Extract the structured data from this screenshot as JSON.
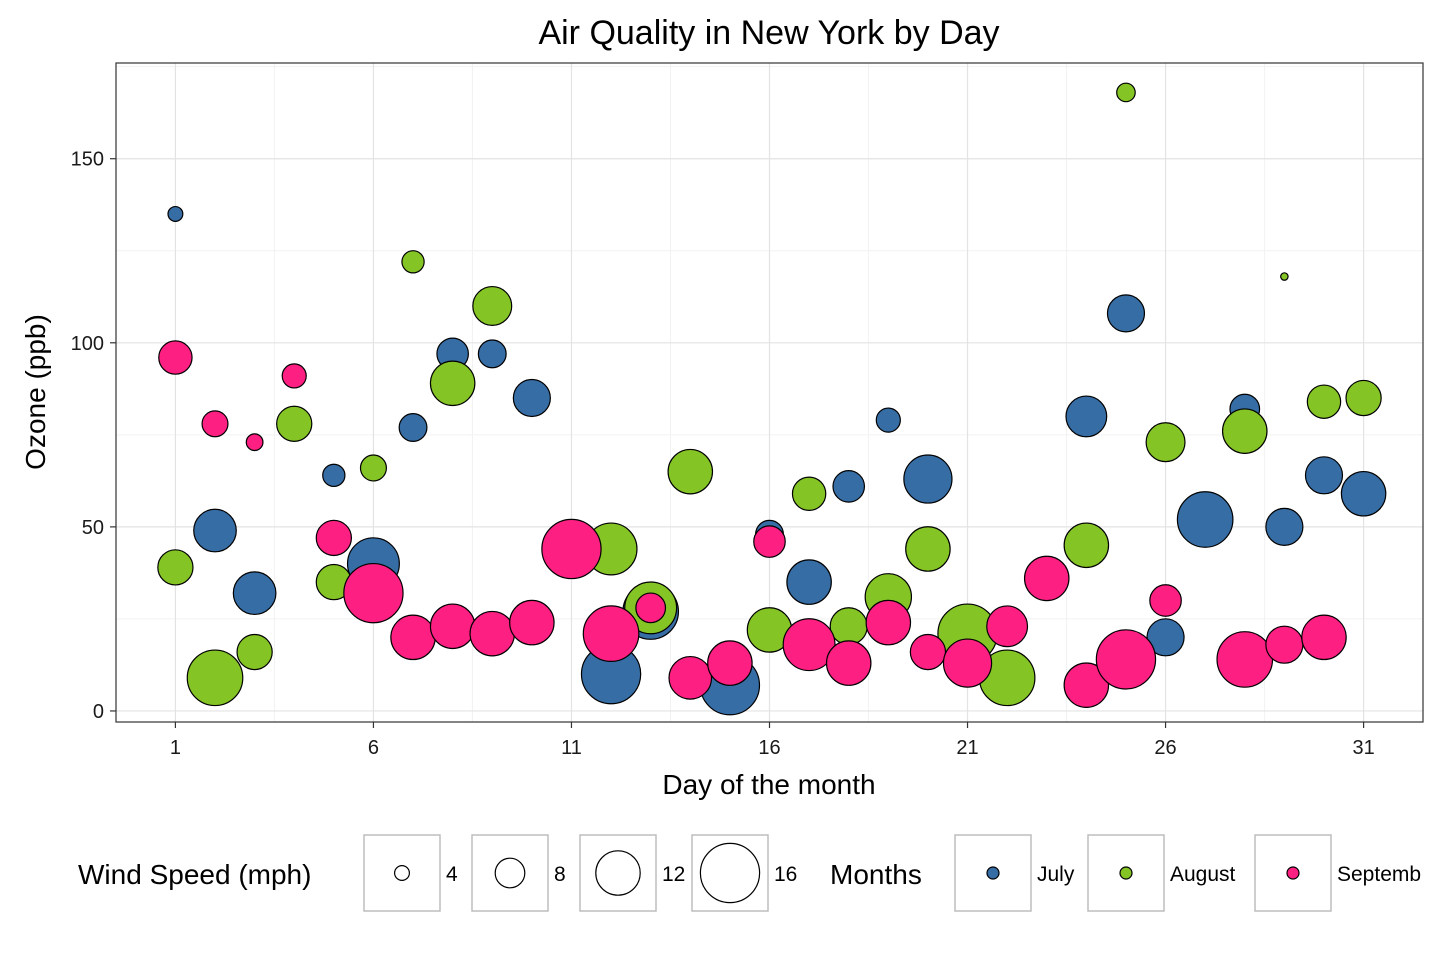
{
  "chart_data": {
    "type": "scatter",
    "title": "Air Quality in New York by Day",
    "xlabel": "Day of the month",
    "ylabel": "Ozone (ppb)",
    "xlim": [
      -0.5,
      32.5
    ],
    "ylim": [
      -3,
      176
    ],
    "x_ticks": [
      1,
      6,
      11,
      16,
      21,
      26,
      31
    ],
    "y_ticks": [
      0,
      50,
      100,
      150
    ],
    "grid": true,
    "size_legend": {
      "title": "Wind Speed (mph)",
      "entries": [
        {
          "label": "4",
          "value": 4
        },
        {
          "label": "8",
          "value": 8
        },
        {
          "label": "12",
          "value": 12
        },
        {
          "label": "16",
          "value": 16
        }
      ]
    },
    "color_legend": {
      "title": "Months",
      "entries": [
        {
          "label": "July",
          "color": "#376da5"
        },
        {
          "label": "August",
          "color": "#85c425"
        },
        {
          "label": "Septemb",
          "color": "#fd1f82"
        }
      ]
    },
    "series": [
      {
        "name": "July",
        "color": "#376da5",
        "points": [
          {
            "x": 1,
            "y": 135,
            "wind": 4
          },
          {
            "x": 2,
            "y": 49,
            "wind": 11.5
          },
          {
            "x": 3,
            "y": 32,
            "wind": 11.5
          },
          {
            "x": 5,
            "y": 64,
            "wind": 6
          },
          {
            "x": 6,
            "y": 40,
            "wind": 14
          },
          {
            "x": 7,
            "y": 77,
            "wind": 7.5
          },
          {
            "x": 8,
            "y": 97,
            "wind": 8.5
          },
          {
            "x": 9,
            "y": 97,
            "wind": 7.5
          },
          {
            "x": 10,
            "y": 85,
            "wind": 10
          },
          {
            "x": 12,
            "y": 10,
            "wind": 16
          },
          {
            "x": 13,
            "y": 27,
            "wind": 15
          },
          {
            "x": 15,
            "y": 7,
            "wind": 16
          },
          {
            "x": 16,
            "y": 48,
            "wind": 7.5
          },
          {
            "x": 17,
            "y": 35,
            "wind": 12
          },
          {
            "x": 18,
            "y": 61,
            "wind": 8.5
          },
          {
            "x": 19,
            "y": 79,
            "wind": 6.5
          },
          {
            "x": 20,
            "y": 63,
            "wind": 13
          },
          {
            "x": 24,
            "y": 80,
            "wind": 11
          },
          {
            "x": 25,
            "y": 108,
            "wind": 10
          },
          {
            "x": 26,
            "y": 20,
            "wind": 10
          },
          {
            "x": 27,
            "y": 52,
            "wind": 15
          },
          {
            "x": 28,
            "y": 82,
            "wind": 8
          },
          {
            "x": 29,
            "y": 50,
            "wind": 10
          },
          {
            "x": 30,
            "y": 64,
            "wind": 10
          },
          {
            "x": 31,
            "y": 59,
            "wind": 12
          }
        ]
      },
      {
        "name": "August",
        "color": "#85c425",
        "points": [
          {
            "x": 1,
            "y": 39,
            "wind": 9.5
          },
          {
            "x": 2,
            "y": 9,
            "wind": 15
          },
          {
            "x": 3,
            "y": 16,
            "wind": 9.5
          },
          {
            "x": 4,
            "y": 78,
            "wind": 9.5
          },
          {
            "x": 5,
            "y": 35,
            "wind": 9.5
          },
          {
            "x": 6,
            "y": 66,
            "wind": 7
          },
          {
            "x": 7,
            "y": 122,
            "wind": 6
          },
          {
            "x": 8,
            "y": 89,
            "wind": 12
          },
          {
            "x": 9,
            "y": 110,
            "wind": 10.5
          },
          {
            "x": 12,
            "y": 44,
            "wind": 14
          },
          {
            "x": 13,
            "y": 28,
            "wind": 14
          },
          {
            "x": 14,
            "y": 65,
            "wind": 12
          },
          {
            "x": 16,
            "y": 22,
            "wind": 12
          },
          {
            "x": 17,
            "y": 59,
            "wind": 9
          },
          {
            "x": 18,
            "y": 23,
            "wind": 10
          },
          {
            "x": 19,
            "y": 31,
            "wind": 12.5
          },
          {
            "x": 20,
            "y": 44,
            "wind": 12
          },
          {
            "x": 21,
            "y": 21,
            "wind": 16
          },
          {
            "x": 22,
            "y": 9,
            "wind": 15
          },
          {
            "x": 24,
            "y": 45,
            "wind": 12
          },
          {
            "x": 25,
            "y": 168,
            "wind": 5
          },
          {
            "x": 26,
            "y": 73,
            "wind": 10.5
          },
          {
            "x": 28,
            "y": 76,
            "wind": 12
          },
          {
            "x": 29,
            "y": 118,
            "wind": 2
          },
          {
            "x": 30,
            "y": 84,
            "wind": 9
          },
          {
            "x": 31,
            "y": 85,
            "wind": 9.5
          }
        ]
      },
      {
        "name": "Septemb",
        "color": "#fd1f82",
        "points": [
          {
            "x": 1,
            "y": 96,
            "wind": 9
          },
          {
            "x": 2,
            "y": 78,
            "wind": 7
          },
          {
            "x": 3,
            "y": 73,
            "wind": 4.5
          },
          {
            "x": 4,
            "y": 91,
            "wind": 6.5
          },
          {
            "x": 5,
            "y": 47,
            "wind": 9.5
          },
          {
            "x": 6,
            "y": 32,
            "wind": 16
          },
          {
            "x": 7,
            "y": 20,
            "wind": 12
          },
          {
            "x": 8,
            "y": 23,
            "wind": 12
          },
          {
            "x": 9,
            "y": 21,
            "wind": 12
          },
          {
            "x": 10,
            "y": 24,
            "wind": 12
          },
          {
            "x": 11,
            "y": 44,
            "wind": 16
          },
          {
            "x": 12,
            "y": 21,
            "wind": 15
          },
          {
            "x": 13,
            "y": 28,
            "wind": 8
          },
          {
            "x": 14,
            "y": 9,
            "wind": 11.5
          },
          {
            "x": 15,
            "y": 13,
            "wind": 12
          },
          {
            "x": 16,
            "y": 46,
            "wind": 8.5
          },
          {
            "x": 17,
            "y": 18,
            "wind": 14
          },
          {
            "x": 18,
            "y": 13,
            "wind": 12
          },
          {
            "x": 19,
            "y": 24,
            "wind": 12
          },
          {
            "x": 20,
            "y": 16,
            "wind": 9.5
          },
          {
            "x": 21,
            "y": 13,
            "wind": 13
          },
          {
            "x": 22,
            "y": 23,
            "wind": 11
          },
          {
            "x": 23,
            "y": 36,
            "wind": 12
          },
          {
            "x": 24,
            "y": 7,
            "wind": 12
          },
          {
            "x": 25,
            "y": 14,
            "wind": 16
          },
          {
            "x": 26,
            "y": 30,
            "wind": 8.5
          },
          {
            "x": 28,
            "y": 14,
            "wind": 15
          },
          {
            "x": 29,
            "y": 18,
            "wind": 10
          },
          {
            "x": 30,
            "y": 20,
            "wind": 12
          }
        ]
      }
    ]
  }
}
